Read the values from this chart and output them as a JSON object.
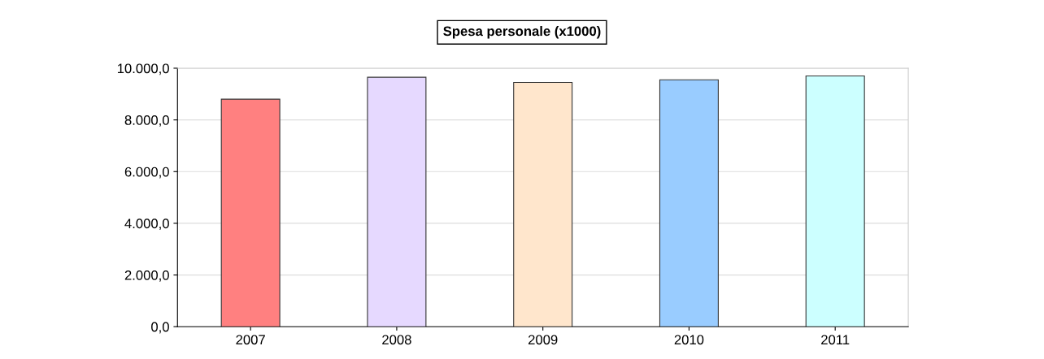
{
  "chart_data": {
    "type": "bar",
    "title": "Spesa personale (x1000)",
    "categories": [
      "2007",
      "2008",
      "2009",
      "2010",
      "2011"
    ],
    "values": [
      8800,
      9650,
      9450,
      9550,
      9700
    ],
    "colors": [
      "#ff8080",
      "#e6d9ff",
      "#ffe6cc",
      "#99ccff",
      "#ccffff"
    ],
    "ylim": [
      0,
      10000
    ],
    "yticks": [
      {
        "value": 0,
        "label": "0,0"
      },
      {
        "value": 2000,
        "label": "2.000,0"
      },
      {
        "value": 4000,
        "label": "4.000,0"
      },
      {
        "value": 6000,
        "label": "6.000,0"
      },
      {
        "value": 8000,
        "label": "8.000,0"
      },
      {
        "value": 10000,
        "label": "10.000,0"
      }
    ],
    "grid": "y"
  }
}
